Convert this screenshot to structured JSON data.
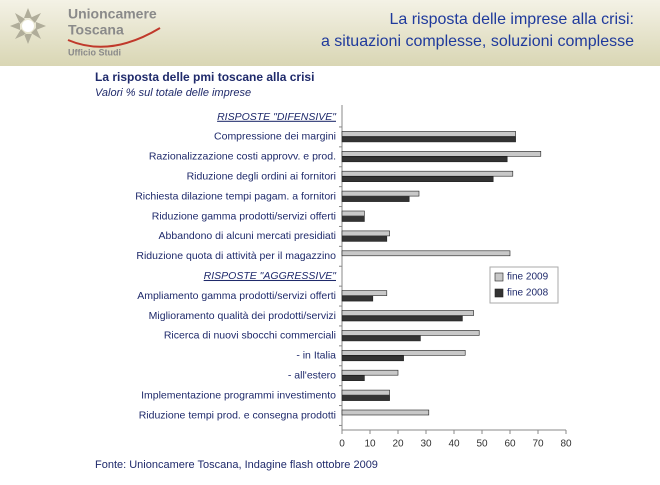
{
  "header": {
    "org_line1": "Unioncamere",
    "org_line2": "Toscana",
    "dept": "Ufficio Studi",
    "title_line1": "La risposta delle imprese alla crisi:",
    "title_line2": "a situazioni complesse, soluzioni complesse"
  },
  "chart_data": {
    "type": "bar",
    "orientation": "horizontal",
    "title": "La risposta delle pmi toscane alla crisi",
    "subtitle": "Valori % sul totale delle imprese",
    "categories": [
      "RISPOSTE \"DIFENSIVE\"",
      "Compressione dei margini",
      "Razionalizzazione costi approvv. e prod.",
      "Riduzione degli ordini ai fornitori",
      "Richiesta dilazione tempi pagam. a fornitori",
      "Riduzione gamma prodotti/servizi offerti",
      "Abbandono di alcuni mercati presidiati",
      "Riduzione quota di attività per il magazzino",
      "RISPOSTE \"AGGRESSIVE\"",
      "Ampliamento gamma prodotti/servizi offerti",
      "Miglioramento qualità dei prodotti/servizi",
      "Ricerca di nuovi sbocchi commerciali",
      "- in Italia",
      "- all'estero",
      "Implementazione programmi investimento",
      "Riduzione tempi prod. e consegna prodotti"
    ],
    "series": [
      {
        "name": "fine 2009",
        "color": "#c8c8c8",
        "values": [
          null,
          62,
          71,
          61,
          27.5,
          8,
          17,
          60,
          null,
          16,
          47,
          49,
          44,
          20,
          17,
          31
        ]
      },
      {
        "name": "fine 2008",
        "color": "#333333",
        "values": [
          null,
          62,
          59,
          54,
          24,
          8,
          16,
          null,
          null,
          11,
          43,
          28,
          22,
          8,
          17,
          null
        ]
      }
    ],
    "xlim": [
      0,
      80
    ],
    "xticks": [
      0,
      10,
      20,
      30,
      40,
      50,
      60,
      70,
      80
    ],
    "legend": "right",
    "source": "Fonte: Unioncamere Toscana, Indagine flash ottobre 2009"
  }
}
